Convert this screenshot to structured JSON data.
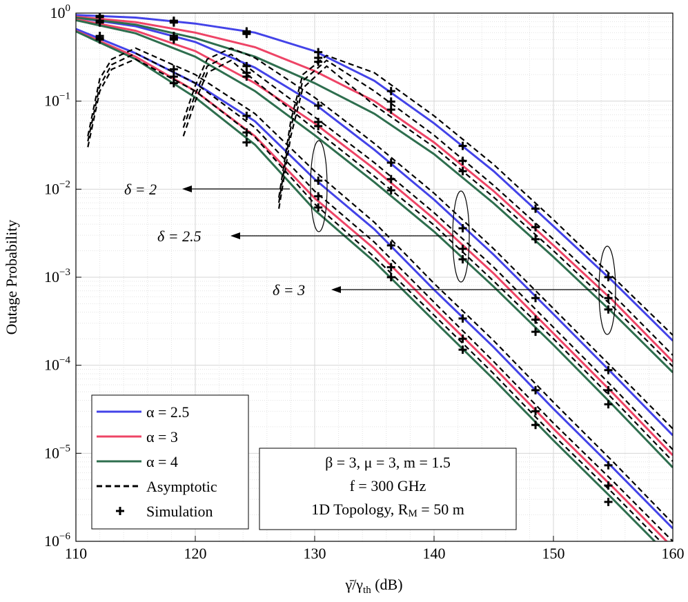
{
  "chart_data": {
    "type": "line",
    "xlabel": {
      "main": "γ̄/γ",
      "sub": "th",
      "tail": " (dB)"
    },
    "ylabel": "Outage Probability",
    "log_y": true,
    "grid": true,
    "xlim": [
      110,
      160
    ],
    "ylim": [
      1e-06,
      1
    ],
    "xticks": [
      110,
      120,
      130,
      140,
      150,
      160
    ],
    "yticks": [
      {
        "value": 1,
        "label": "10",
        "exponent": "0"
      },
      {
        "value": 0.1,
        "label": "10",
        "exponent": "−1"
      },
      {
        "value": 0.01,
        "label": "10",
        "exponent": "−2"
      },
      {
        "value": 0.001,
        "label": "10",
        "exponent": "−3"
      },
      {
        "value": 0.0001,
        "label": "10",
        "exponent": "−4"
      },
      {
        "value": 1e-05,
        "label": "10",
        "exponent": "−5"
      },
      {
        "value": 1e-06,
        "label": "10",
        "exponent": "−6"
      }
    ],
    "x": [
      110,
      115,
      120,
      125,
      130,
      135,
      140,
      145,
      150,
      155,
      160
    ],
    "series": [
      {
        "color": "#4343e8",
        "values": [
          0.66,
          0.35,
          0.16,
          0.059,
          0.013,
          0.0035,
          0.00072,
          0.00016,
          3.2e-05,
          6.8e-06,
          1.4e-06
        ]
      },
      {
        "color": "#ee4466",
        "values": [
          0.63,
          0.32,
          0.13,
          0.04,
          0.0079,
          0.0021,
          0.00044,
          9.5e-05,
          1.9e-05,
          4.1e-06,
          8.5e-07
        ]
      },
      {
        "color": "#2e6e4e",
        "values": [
          0.62,
          0.3,
          0.11,
          0.032,
          0.0058,
          0.0015,
          0.00032,
          6.9e-05,
          1.4e-05,
          3e-06,
          6.2e-07
        ]
      },
      {
        "color": "#4343e8",
        "values": [
          0.89,
          0.71,
          0.47,
          0.24,
          0.093,
          0.028,
          0.0076,
          0.0018,
          0.00038,
          7.9e-05,
          1.6e-05
        ]
      },
      {
        "color": "#ee4466",
        "values": [
          0.85,
          0.63,
          0.37,
          0.16,
          0.056,
          0.017,
          0.0046,
          0.0011,
          0.00023,
          4.8e-05,
          9.5e-06
        ]
      },
      {
        "color": "#2e6e4e",
        "values": [
          0.83,
          0.59,
          0.32,
          0.13,
          0.041,
          0.012,
          0.0033,
          0.00078,
          0.00017,
          3.5e-05,
          6.9e-06
        ]
      },
      {
        "color": "#4343e8",
        "values": [
          0.95,
          0.89,
          0.76,
          0.6,
          0.37,
          0.17,
          0.056,
          0.016,
          0.0038,
          0.00089,
          0.00019
        ]
      },
      {
        "color": "#ee4466",
        "values": [
          0.91,
          0.79,
          0.6,
          0.41,
          0.22,
          0.1,
          0.034,
          0.0095,
          0.0023,
          0.00054,
          0.00011
        ]
      },
      {
        "color": "#2e6e4e",
        "values": [
          0.89,
          0.74,
          0.52,
          0.32,
          0.16,
          0.072,
          0.025,
          0.0069,
          0.0017,
          0.00039,
          8.3e-05
        ]
      }
    ],
    "asymptotic": [
      {
        "x": [
          111,
          112,
          113,
          115,
          120,
          125,
          130,
          135,
          140,
          145,
          150,
          155,
          160
        ],
        "values": [
          0.04,
          0.18,
          0.3,
          0.4,
          0.2,
          0.072,
          0.016,
          0.0042,
          0.00085,
          0.00019,
          3.8e-05,
          8e-06,
          1.6e-06
        ]
      },
      {
        "x": [
          111,
          112,
          113,
          115,
          120,
          125,
          130,
          135,
          140,
          145,
          150,
          155,
          160
        ],
        "values": [
          0.035,
          0.15,
          0.26,
          0.35,
          0.16,
          0.05,
          0.0095,
          0.0025,
          0.00052,
          0.00011,
          2.2e-05,
          4.8e-06,
          1e-06
        ]
      },
      {
        "x": [
          111,
          112,
          113,
          115,
          120,
          125,
          130,
          135,
          140,
          145,
          150,
          155,
          160
        ],
        "values": [
          0.03,
          0.13,
          0.23,
          0.3,
          0.13,
          0.039,
          0.0068,
          0.0017,
          0.00037,
          8e-05,
          1.6e-05,
          3.5e-06,
          7.2e-07
        ]
      },
      {
        "x": [
          119,
          120,
          121,
          123,
          125,
          130,
          135,
          140,
          145,
          150,
          155,
          160
        ],
        "values": [
          0.06,
          0.15,
          0.3,
          0.4,
          0.31,
          0.11,
          0.033,
          0.009,
          0.0021,
          0.00044,
          9.2e-05,
          1.9e-05
        ]
      },
      {
        "x": [
          119,
          120,
          121,
          123,
          125,
          130,
          135,
          140,
          145,
          150,
          155,
          160
        ],
        "values": [
          0.05,
          0.12,
          0.25,
          0.34,
          0.21,
          0.066,
          0.02,
          0.0054,
          0.0013,
          0.00027,
          5.6e-05,
          1.1e-05
        ]
      },
      {
        "x": [
          119,
          120,
          121,
          123,
          125,
          130,
          135,
          140,
          145,
          150,
          155,
          160
        ],
        "values": [
          0.04,
          0.1,
          0.21,
          0.29,
          0.17,
          0.048,
          0.014,
          0.0039,
          0.0009,
          0.0002,
          4.1e-05,
          8.1e-06
        ]
      },
      {
        "x": [
          127,
          128,
          129,
          131,
          135,
          140,
          145,
          150,
          155,
          160
        ],
        "values": [
          0.008,
          0.06,
          0.2,
          0.33,
          0.21,
          0.068,
          0.019,
          0.0045,
          0.001,
          0.00022
        ]
      },
      {
        "x": [
          127,
          128,
          129,
          131,
          135,
          140,
          145,
          150,
          155,
          160
        ],
        "values": [
          0.007,
          0.05,
          0.17,
          0.29,
          0.13,
          0.041,
          0.011,
          0.0027,
          0.00063,
          0.00013
        ]
      },
      {
        "x": [
          127,
          128,
          129,
          131,
          135,
          140,
          145,
          150,
          155,
          160
        ],
        "values": [
          0.006,
          0.04,
          0.14,
          0.25,
          0.09,
          0.03,
          0.0081,
          0.002,
          0.00046,
          9.7e-05
        ]
      }
    ],
    "simulation": {
      "x": [
        112,
        118.2,
        124.3,
        130.3,
        136.4,
        142.4,
        148.5,
        154.6
      ],
      "series": [
        {
          "values": [
            0.55,
            0.23,
            0.068,
            0.0125,
            0.0023,
            0.00034,
            5.2e-05,
            7.3e-06
          ]
        },
        {
          "values": [
            0.52,
            0.19,
            0.044,
            0.0083,
            0.0013,
            0.0002,
            3e-05,
            4.3e-06
          ]
        },
        {
          "values": [
            0.5,
            0.16,
            0.034,
            0.0062,
            0.001,
            0.00015,
            2.1e-05,
            2.8e-06
          ]
        },
        {
          "values": [
            0.82,
            0.55,
            0.25,
            0.089,
            0.02,
            0.0036,
            0.00058,
            8.8e-05
          ]
        },
        {
          "values": [
            0.8,
            0.52,
            0.21,
            0.058,
            0.013,
            0.0021,
            0.00033,
            5.2e-05
          ]
        },
        {
          "values": [
            0.78,
            0.5,
            0.19,
            0.052,
            0.0097,
            0.0016,
            0.00024,
            3.6e-05
          ]
        },
        {
          "values": [
            0.93,
            0.82,
            0.62,
            0.36,
            0.13,
            0.031,
            0.006,
            0.001
          ]
        },
        {
          "values": [
            0.92,
            0.8,
            0.6,
            0.31,
            0.099,
            0.021,
            0.0037,
            0.00058
          ]
        },
        {
          "values": [
            0.9,
            0.78,
            0.58,
            0.28,
            0.08,
            0.016,
            0.0027,
            0.00043
          ]
        }
      ]
    },
    "legend": [
      {
        "label": "α = 2.5",
        "color": "#4343e8",
        "style": "line"
      },
      {
        "label": "α = 3",
        "color": "#ee4466",
        "style": "line"
      },
      {
        "label": "α = 4",
        "color": "#2e6e4e",
        "style": "line"
      },
      {
        "label": "Asymptotic",
        "color": "#000000",
        "style": "dashed"
      },
      {
        "label": "Simulation",
        "color": "#000000",
        "style": "marker"
      }
    ],
    "annotations": [
      "δ = 2",
      "δ = 2.5",
      "δ = 3"
    ],
    "info_box": {
      "line1": "β = 3, μ = 3, m = 1.5",
      "line2": "f = 300 GHz",
      "line3": {
        "main": "1D Topology, R",
        "sub": "M",
        "tail": " = 50 m"
      }
    }
  }
}
